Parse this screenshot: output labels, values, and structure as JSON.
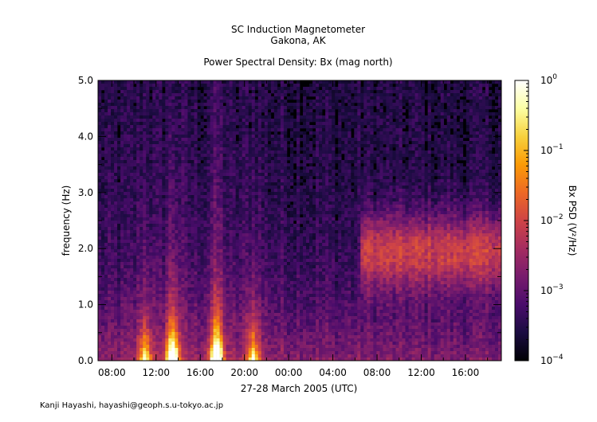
{
  "header": {
    "title_line1": "SC Induction Magnetometer",
    "title_line2": "Gakona, AK",
    "subtitle": "Power Spectral Density: Bx (mag north)"
  },
  "credit": "Kanji Hayashi, hayashi@geoph.s.u-tokyo.ac.jp",
  "chart_data": {
    "type": "heatmap",
    "title": "Power Spectral Density: Bx (mag north)",
    "xlabel": "27-28 March 2005 (UTC)",
    "ylabel": "frequency (Hz)",
    "x_start_hour": 6.75,
    "x_end_hour": 43.25,
    "xticks": [
      {
        "hour": 8,
        "label": "08:00"
      },
      {
        "hour": 12,
        "label": "12:00"
      },
      {
        "hour": 16,
        "label": "16:00"
      },
      {
        "hour": 20,
        "label": "20:00"
      },
      {
        "hour": 24,
        "label": "00:00"
      },
      {
        "hour": 28,
        "label": "04:00"
      },
      {
        "hour": 32,
        "label": "08:00"
      },
      {
        "hour": 36,
        "label": "12:00"
      },
      {
        "hour": 40,
        "label": "16:00"
      }
    ],
    "ylim": [
      0,
      5.0
    ],
    "yticks": [
      {
        "value": 0.0,
        "label": "0.0"
      },
      {
        "value": 1.0,
        "label": "1.0"
      },
      {
        "value": 2.0,
        "label": "2.0"
      },
      {
        "value": 3.0,
        "label": "3.0"
      },
      {
        "value": 4.0,
        "label": "4.0"
      },
      {
        "value": 5.0,
        "label": "5.0"
      }
    ],
    "colorbar": {
      "label": "Bx PSD (V²/Hz)",
      "scale": "log",
      "range": [
        0.0001,
        1
      ],
      "ticks": [
        {
          "value": 1,
          "base": "10",
          "exp": "0"
        },
        {
          "value": 0.1,
          "base": "10",
          "exp": "−1"
        },
        {
          "value": 0.01,
          "base": "10",
          "exp": "−2"
        },
        {
          "value": 0.001,
          "base": "10",
          "exp": "−3"
        },
        {
          "value": 0.0001,
          "base": "10",
          "exp": "−4"
        }
      ],
      "colormap": [
        "#000004",
        "#1b0c41",
        "#4a0c6b",
        "#781c6d",
        "#a52c60",
        "#cf4446",
        "#ed6925",
        "#fb9b06",
        "#f7d13d",
        "#fcffa4",
        "#ffffff"
      ]
    },
    "features": [
      {
        "kind": "low_freq_burst",
        "center_hour": 11.0,
        "intensity": 0.55
      },
      {
        "kind": "low_freq_burst",
        "center_hour": 13.5,
        "intensity": 0.9
      },
      {
        "kind": "low_freq_burst",
        "center_hour": 17.5,
        "intensity": 0.95
      },
      {
        "kind": "low_freq_burst",
        "center_hour": 20.8,
        "intensity": 0.55
      },
      {
        "kind": "band",
        "start_hour": 30.5,
        "end_hour": 43.2,
        "freq_low": 1.3,
        "freq_high": 2.6,
        "intensity": 0.55
      }
    ]
  }
}
